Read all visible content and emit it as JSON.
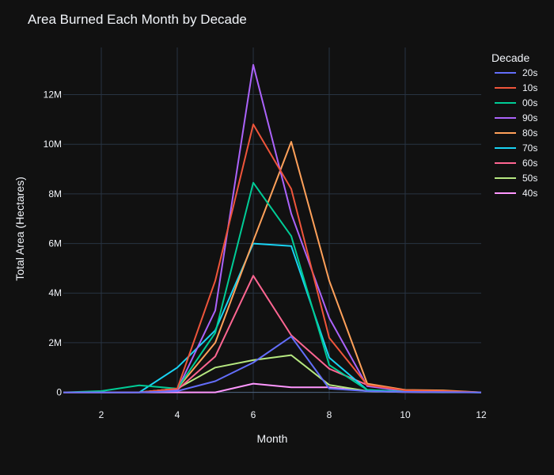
{
  "chart_data": {
    "type": "line",
    "title": "Area Burned Each Month by Decade",
    "xlabel": "Month",
    "ylabel": "Total Area (Hectares)",
    "xlim": [
      1,
      12
    ],
    "ylim": [
      -300000,
      13900000
    ],
    "x_ticks": [
      2,
      4,
      6,
      8,
      10,
      12
    ],
    "x_tick_labels": [
      "2",
      "4",
      "6",
      "8",
      "10",
      "12"
    ],
    "y_ticks": [
      0,
      2000000,
      4000000,
      6000000,
      8000000,
      10000000,
      12000000
    ],
    "y_tick_labels": [
      "0",
      "2M",
      "4M",
      "6M",
      "8M",
      "10M",
      "12M"
    ],
    "grid": true,
    "legend_title": "Decade",
    "legend_position": "right",
    "x": [
      1,
      2,
      3,
      4,
      5,
      6,
      7,
      8,
      9,
      10,
      11,
      12
    ],
    "series": [
      {
        "name": "20s",
        "color": "#636efa",
        "values": [
          0,
          0,
          0,
          50000,
          450000,
          1200000,
          2250000,
          150000,
          50000,
          20000,
          10000,
          0
        ]
      },
      {
        "name": "10s",
        "color": "#ef553b",
        "values": [
          0,
          0,
          0,
          150000,
          4500000,
          10800000,
          8200000,
          2200000,
          300000,
          80000,
          50000,
          0
        ]
      },
      {
        "name": "00s",
        "color": "#00cc96",
        "values": [
          0,
          50000,
          280000,
          150000,
          2400000,
          8450000,
          6300000,
          1100000,
          100000,
          30000,
          10000,
          0
        ]
      },
      {
        "name": "90s",
        "color": "#ab63fa",
        "values": [
          0,
          0,
          0,
          100000,
          3300000,
          13200000,
          7200000,
          3000000,
          250000,
          50000,
          20000,
          0
        ]
      },
      {
        "name": "80s",
        "color": "#ffa15a",
        "values": [
          0,
          0,
          0,
          150000,
          2000000,
          6100000,
          10100000,
          4500000,
          350000,
          100000,
          80000,
          0
        ]
      },
      {
        "name": "70s",
        "color": "#19d3f3",
        "values": [
          0,
          0,
          0,
          1000000,
          2500000,
          6000000,
          5900000,
          1400000,
          100000,
          30000,
          10000,
          0
        ]
      },
      {
        "name": "60s",
        "color": "#ff6692",
        "values": [
          0,
          0,
          0,
          100000,
          1450000,
          4700000,
          2300000,
          950000,
          300000,
          50000,
          20000,
          0
        ]
      },
      {
        "name": "50s",
        "color": "#b6e880",
        "values": [
          0,
          0,
          0,
          150000,
          1000000,
          1300000,
          1500000,
          300000,
          50000,
          20000,
          10000,
          0
        ]
      },
      {
        "name": "40s",
        "color": "#ff97ff",
        "values": [
          0,
          0,
          0,
          0,
          0,
          350000,
          200000,
          200000,
          50000,
          10000,
          0,
          0
        ]
      }
    ]
  }
}
